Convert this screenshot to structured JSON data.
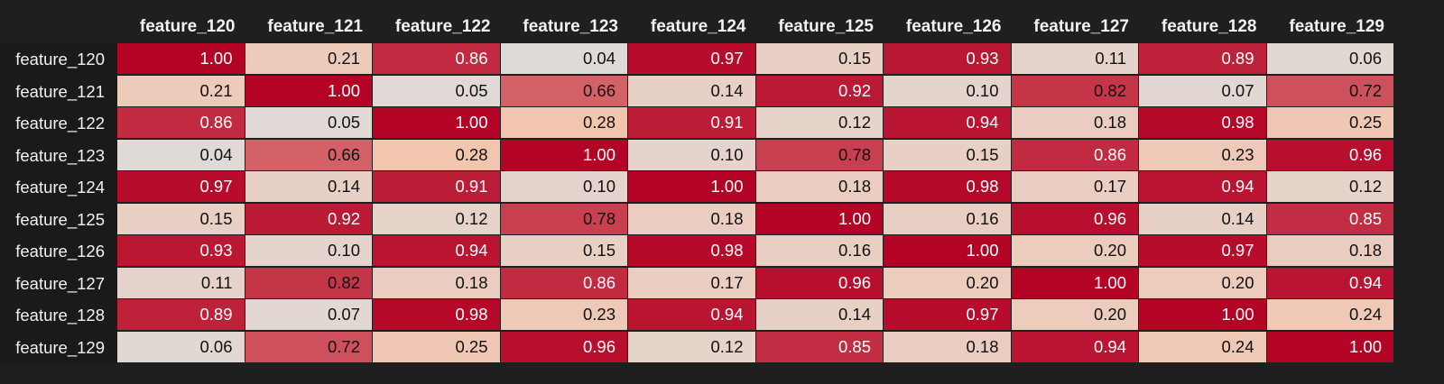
{
  "table": {
    "columns": [
      "feature_120",
      "feature_121",
      "feature_122",
      "feature_123",
      "feature_124",
      "feature_125",
      "feature_126",
      "feature_127",
      "feature_128",
      "feature_129"
    ],
    "rows": [
      "feature_120",
      "feature_121",
      "feature_122",
      "feature_123",
      "feature_124",
      "feature_125",
      "feature_126",
      "feature_127",
      "feature_128",
      "feature_129"
    ],
    "values": [
      [
        1.0,
        0.21,
        0.86,
        0.04,
        0.97,
        0.15,
        0.93,
        0.11,
        0.89,
        0.06
      ],
      [
        0.21,
        1.0,
        0.05,
        0.66,
        0.14,
        0.92,
        0.1,
        0.82,
        0.07,
        0.72
      ],
      [
        0.86,
        0.05,
        1.0,
        0.28,
        0.91,
        0.12,
        0.94,
        0.18,
        0.98,
        0.25
      ],
      [
        0.04,
        0.66,
        0.28,
        1.0,
        0.1,
        0.78,
        0.15,
        0.86,
        0.23,
        0.96
      ],
      [
        0.97,
        0.14,
        0.91,
        0.1,
        1.0,
        0.18,
        0.98,
        0.17,
        0.94,
        0.12
      ],
      [
        0.15,
        0.92,
        0.12,
        0.78,
        0.18,
        1.0,
        0.16,
        0.96,
        0.14,
        0.85
      ],
      [
        0.93,
        0.1,
        0.94,
        0.15,
        0.98,
        0.16,
        1.0,
        0.2,
        0.97,
        0.18
      ],
      [
        0.11,
        0.82,
        0.18,
        0.86,
        0.17,
        0.96,
        0.2,
        1.0,
        0.2,
        0.94
      ],
      [
        0.89,
        0.07,
        0.98,
        0.23,
        0.94,
        0.14,
        0.97,
        0.2,
        1.0,
        0.24
      ],
      [
        0.06,
        0.72,
        0.25,
        0.96,
        0.12,
        0.85,
        0.18,
        0.94,
        0.24,
        1.0
      ]
    ],
    "display": [
      [
        "1.00",
        "0.21",
        "0.86",
        "0.04",
        "0.97",
        "0.15",
        "0.93",
        "0.11",
        "0.89",
        "0.06"
      ],
      [
        "0.21",
        "1.00",
        "0.05",
        "0.66",
        "0.14",
        "0.92",
        "0.10",
        "0.82",
        "0.07",
        "0.72"
      ],
      [
        "0.86",
        "0.05",
        "1.00",
        "0.28",
        "0.91",
        "0.12",
        "0.94",
        "0.18",
        "0.98",
        "0.25"
      ],
      [
        "0.04",
        "0.66",
        "0.28",
        "1.00",
        "0.10",
        "0.78",
        "0.15",
        "0.86",
        "0.23",
        "0.96"
      ],
      [
        "0.97",
        "0.14",
        "0.91",
        "0.10",
        "1.00",
        "0.18",
        "0.98",
        "0.17",
        "0.94",
        "0.12"
      ],
      [
        "0.15",
        "0.92",
        "0.12",
        "0.78",
        "0.18",
        "1.00",
        "0.16",
        "0.96",
        "0.14",
        "0.85"
      ],
      [
        "0.93",
        "0.10",
        "0.94",
        "0.15",
        "0.98",
        "0.16",
        "1.00",
        "0.20",
        "0.97",
        "0.18"
      ],
      [
        "0.11",
        "0.82",
        "0.18",
        "0.86",
        "0.17",
        "0.96",
        "0.20",
        "1.00",
        "0.20",
        "0.94"
      ],
      [
        "0.89",
        "0.07",
        "0.98",
        "0.23",
        "0.94",
        "0.14",
        "0.97",
        "0.20",
        "1.00",
        "0.24"
      ],
      [
        "0.06",
        "0.72",
        "0.25",
        "0.96",
        "0.12",
        "0.85",
        "0.18",
        "0.94",
        "0.24",
        "1.00"
      ]
    ],
    "colorscale": {
      "low": "#dddddd",
      "mid": "#f3c3ac",
      "high": "#b40426",
      "text_dark": "#111111",
      "text_light": "#ffffff"
    }
  }
}
